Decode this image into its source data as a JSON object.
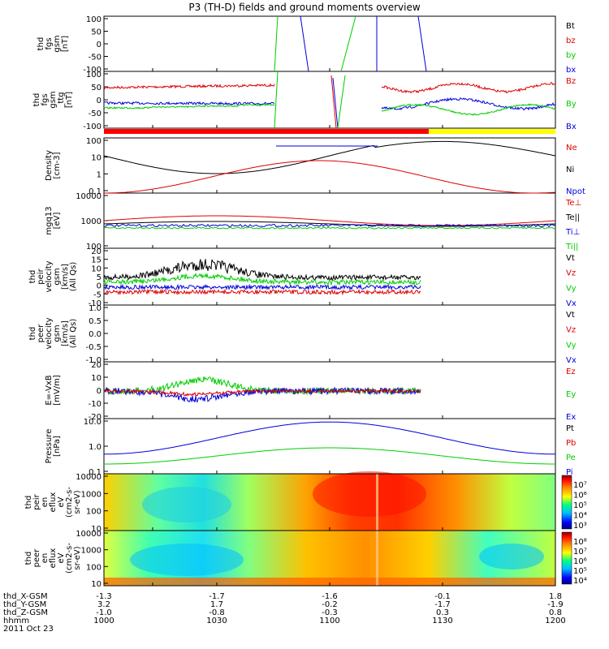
{
  "title": "P3 (TH-D) fields and ground moments overview",
  "colors": {
    "black": "#000000",
    "red": "#dd0000",
    "green": "#00cc00",
    "blue": "#0000dd",
    "yellow": "#ffff00",
    "redbar": "#ff0000"
  },
  "chart_data": [
    {
      "id": "p1",
      "type": "line",
      "ylabel": [
        "thd",
        "fgs",
        "gsm",
        "[nT]"
      ],
      "yticks": [
        "100",
        "50",
        "0",
        "-50",
        "-100"
      ],
      "ylim": [
        -100,
        100
      ],
      "legend": [
        {
          "label": "Bt",
          "color": "#000000"
        },
        {
          "label": "bz",
          "color": "#dd0000"
        },
        {
          "label": "by",
          "color": "#00cc00"
        },
        {
          "label": "bx",
          "color": "#0000dd"
        }
      ]
    },
    {
      "id": "p2",
      "type": "line",
      "ylabel": [
        "thd",
        "fgs",
        "gsm",
        "_ttg",
        "[nT]"
      ],
      "yticks": [
        "100",
        "50",
        "0",
        "-50",
        "-100"
      ],
      "ylim": [
        -120,
        100
      ],
      "legend": [
        {
          "label": "Bz",
          "color": "#dd0000"
        },
        {
          "label": "By",
          "color": "#00cc00"
        },
        {
          "label": "Bx",
          "color": "#0000dd"
        }
      ]
    },
    {
      "id": "p3",
      "type": "line",
      "ylabel": [
        "Density",
        "[cm-3]"
      ],
      "yticks": [
        "100",
        "10",
        "1",
        "0.1"
      ],
      "ylim": [
        0.08,
        200
      ],
      "legend": [
        {
          "label": "Ne",
          "color": "#dd0000"
        },
        {
          "label": "Ni",
          "color": "#000000"
        },
        {
          "label": "Npot",
          "color": "#0000dd"
        }
      ]
    },
    {
      "id": "p4",
      "type": "line",
      "ylabel": [
        "mgq13",
        "[eV]"
      ],
      "yticks": [
        "10000",
        "1000",
        "100"
      ],
      "ylim": [
        30,
        12000
      ],
      "legend": [
        {
          "label": "Te⊥",
          "color": "#dd0000"
        },
        {
          "label": "Te||",
          "color": "#000000"
        },
        {
          "label": "Ti⊥",
          "color": "#0000dd"
        },
        {
          "label": "Ti||",
          "color": "#00cc00"
        }
      ]
    },
    {
      "id": "p5",
      "type": "line",
      "ylabel": [
        "thd",
        "peir",
        "velocity",
        "gsm",
        "[km/s]",
        "(All Qs)"
      ],
      "yticks": [
        "20",
        "15",
        "10",
        "5",
        "0",
        "-5",
        "-10"
      ],
      "ylim": [
        -10,
        20
      ],
      "legend": [
        {
          "label": "Vt",
          "color": "#000000"
        },
        {
          "label": "Vz",
          "color": "#dd0000"
        },
        {
          "label": "Vy",
          "color": "#00cc00"
        },
        {
          "label": "Vx",
          "color": "#0000dd"
        }
      ]
    },
    {
      "id": "p6",
      "type": "line",
      "ylabel": [
        "thd",
        "peer",
        "velocity",
        "gsm",
        "[km/s]",
        "(All Qs)"
      ],
      "yticks": [
        "1.0",
        "0.5",
        "0.0",
        "-0.5",
        "-1.0"
      ],
      "ylim": [
        -1,
        1
      ],
      "legend": [
        {
          "label": "Vt",
          "color": "#000000"
        },
        {
          "label": "Vz",
          "color": "#dd0000"
        },
        {
          "label": "Vy",
          "color": "#00cc00"
        },
        {
          "label": "Vx",
          "color": "#0000dd"
        }
      ]
    },
    {
      "id": "p7",
      "type": "line",
      "ylabel": [
        "E=-VxB",
        "[mV/m]"
      ],
      "yticks": [
        "20",
        "10",
        "0",
        "-10",
        "-20"
      ],
      "ylim": [
        -22,
        20
      ],
      "legend": [
        {
          "label": "Ez",
          "color": "#dd0000"
        },
        {
          "label": "Ey",
          "color": "#00cc00"
        },
        {
          "label": "Ex",
          "color": "#0000dd"
        }
      ]
    },
    {
      "id": "p8",
      "type": "line",
      "ylabel": [
        "Pressure",
        "[nPa]"
      ],
      "yticks": [
        "10.0",
        "1.0",
        "0.1"
      ],
      "ylim": [
        0.015,
        20
      ],
      "legend": [
        {
          "label": "Pt",
          "color": "#000000"
        },
        {
          "label": "Pb",
          "color": "#dd0000"
        },
        {
          "label": "Pe",
          "color": "#00cc00"
        },
        {
          "label": "Pi",
          "color": "#0000dd"
        }
      ]
    },
    {
      "id": "p9",
      "type": "heatmap",
      "ylabel": [
        "thd",
        "peir",
        "en",
        "eflux",
        "eV",
        "(cm2-s-",
        "sr-eV)"
      ],
      "yticks": [
        "10000",
        "1000",
        "100",
        "10"
      ],
      "colorbar_ticks": [
        "10⁷",
        "10⁶",
        "10⁵",
        "10⁴",
        "10³"
      ]
    },
    {
      "id": "p10",
      "type": "heatmap",
      "ylabel": [
        "thd",
        "peer",
        "en",
        "eflux",
        "eV",
        "(cm2-s-",
        "sr-eV)"
      ],
      "yticks": [
        "10000",
        "1000",
        "100",
        "10"
      ],
      "colorbar_ticks": [
        "10⁸",
        "10⁷",
        "10⁶",
        "10⁵",
        "10⁴"
      ]
    }
  ],
  "xaxis": {
    "row_labels": [
      "thd_X-GSM",
      "thd_Y-GSM",
      "thd_Z-GSM",
      "hhmm",
      "2011 Oct 23"
    ],
    "columns": [
      [
        "-1.3",
        "3.2",
        "-1.0",
        "1000"
      ],
      [
        "-1.7",
        "1.7",
        "-0.8",
        "1030"
      ],
      [
        "-1.6",
        "-0.2",
        "-0.3",
        "1100"
      ],
      [
        "-0.1",
        "-1.7",
        "0.3",
        "1130"
      ],
      [
        "1.8",
        "-1.9",
        "0.8",
        "1200"
      ]
    ]
  }
}
